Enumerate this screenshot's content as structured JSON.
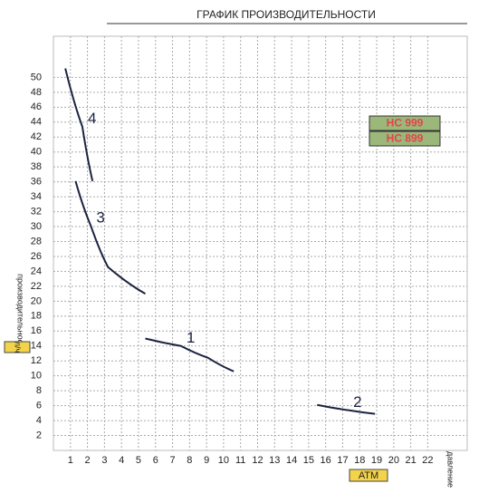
{
  "chart_data": {
    "type": "line",
    "title": "ГРАФИК ПРОИЗВОДИТЕЛЬНОСТИ",
    "ylabel": "производительность",
    "yunit": "л/ч",
    "xlabel": "давление",
    "xunit": "АТМ",
    "legend_labels": [
      "HC 999",
      "HC 899"
    ],
    "xlim": [
      0,
      24
    ],
    "ylim": [
      0,
      56
    ],
    "xticks": [
      1,
      2,
      3,
      4,
      5,
      6,
      7,
      8,
      9,
      10,
      11,
      12,
      13,
      14,
      15,
      16,
      17,
      18,
      19,
      20,
      21,
      22
    ],
    "yticks": [
      2,
      4,
      6,
      8,
      10,
      12,
      14,
      16,
      18,
      20,
      22,
      24,
      26,
      28,
      30,
      32,
      34,
      36,
      38,
      40,
      42,
      44,
      46,
      48,
      50
    ],
    "grid": true,
    "series": [
      {
        "name": "4",
        "color": "#1c2340",
        "x": [
          0.7,
          1.7,
          2.3
        ],
        "values": [
          51.2,
          43.4,
          36.1
        ]
      },
      {
        "name": "3",
        "color": "#1c2340",
        "x": [
          1.3,
          2.2,
          3.2,
          5.4
        ],
        "values": [
          36.1,
          30.1,
          24.6,
          21.0
        ]
      },
      {
        "name": "1",
        "color": "#1c2340",
        "x": [
          5.4,
          7.5,
          9.1,
          10.6
        ],
        "values": [
          15.0,
          14.0,
          12.4,
          10.6
        ]
      },
      {
        "name": "2",
        "color": "#1c2340",
        "x": [
          15.5,
          17.3,
          18.9
        ],
        "values": [
          6.1,
          5.4,
          4.9
        ]
      }
    ]
  }
}
